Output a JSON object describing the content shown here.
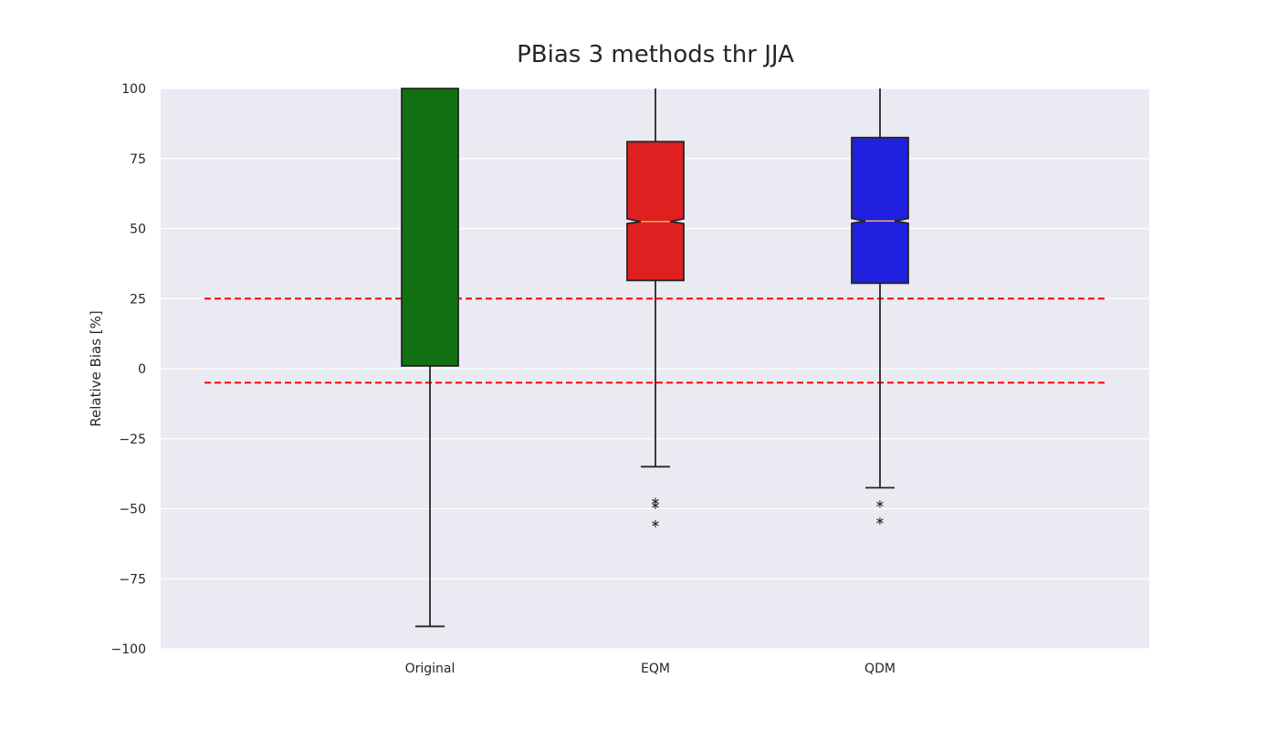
{
  "chart_data": {
    "type": "box",
    "title": "PBias 3 methods thr JJA",
    "xlabel": "",
    "ylabel": "Relative Bias [%]",
    "ylim": [
      -100,
      100
    ],
    "yticks": [
      100,
      75,
      50,
      25,
      0,
      -25,
      -50,
      -75,
      -100
    ],
    "ytick_labels": [
      "100",
      "75",
      "50",
      "25",
      "0",
      "−25",
      "−50",
      "−75",
      "−100"
    ],
    "grid": true,
    "categories": [
      "Original",
      "EQM",
      "QDM"
    ],
    "boxes": [
      {
        "category": "Original",
        "color": "#117011",
        "q1": 1,
        "median": null,
        "q3": 100,
        "whisker_low": -92,
        "whisker_high": 100,
        "notch_low": null,
        "notch_high": null,
        "outliers": []
      },
      {
        "category": "EQM",
        "color": "#df2020",
        "q1": 31.5,
        "median": 52.5,
        "q3": 81,
        "whisker_low": -35,
        "whisker_high": 100,
        "notch_low": 51.8,
        "notch_high": 53.5,
        "outliers": [
          -47,
          -48.5,
          -55
        ]
      },
      {
        "category": "QDM",
        "color": "#2020df",
        "q1": 30.5,
        "median": 52.7,
        "q3": 82.5,
        "whisker_low": -42.5,
        "whisker_high": 100,
        "notch_low": 51.9,
        "notch_high": 53.6,
        "outliers": [
          -48,
          -54
        ]
      }
    ],
    "reference_lines": [
      {
        "y": 25,
        "color": "#ff0000",
        "style": "dashed"
      },
      {
        "y": -5,
        "color": "#ff0000",
        "style": "dashed"
      }
    ],
    "colors": {
      "plot_background": "#eaeaf2",
      "grid": "#ffffff",
      "median": "#f0a050",
      "box_edge": "#262626"
    }
  }
}
